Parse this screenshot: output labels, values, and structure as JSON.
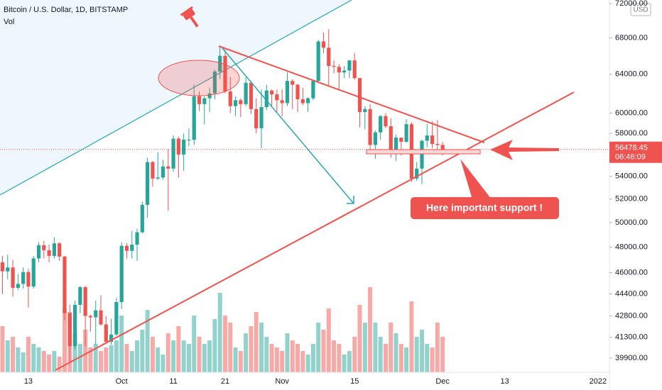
{
  "header": {
    "symbol": "Bitcoin / U.S. Dollar, 1D, BITSTAMP",
    "volume_label": "Vol",
    "currency": "USD"
  },
  "chart_data": {
    "type": "candlestick",
    "log_scale": true,
    "up_color": "#26a69a",
    "down_color": "#ef5350",
    "ylim": [
      38970,
      72430
    ],
    "yticks": [
      {
        "value": 39900,
        "label": "39900.00"
      },
      {
        "value": 41300,
        "label": "41300.00"
      },
      {
        "value": 42800,
        "label": "42800.00"
      },
      {
        "value": 44400,
        "label": "44400.00"
      },
      {
        "value": 46000,
        "label": "46000.00"
      },
      {
        "value": 48000,
        "label": "48000.00"
      },
      {
        "value": 50000,
        "label": "50000.00"
      },
      {
        "value": 52000,
        "label": "52000.00"
      },
      {
        "value": 54000,
        "label": "54000.00"
      },
      {
        "value": 58000,
        "label": "58000.00"
      },
      {
        "value": 60000,
        "label": "60000.00"
      },
      {
        "value": 64000,
        "label": "64000.00"
      },
      {
        "value": 68000,
        "label": "68000.00"
      },
      {
        "value": 72000,
        "label": "72000.00"
      }
    ],
    "categories": [
      null,
      null,
      null,
      null,
      null,
      "13",
      null,
      null,
      null,
      null,
      null,
      null,
      null,
      null,
      null,
      null,
      null,
      null,
      null,
      null,
      null,
      null,
      null,
      "Oct",
      null,
      null,
      null,
      null,
      null,
      null,
      null,
      null,
      null,
      "11",
      null,
      null,
      null,
      null,
      null,
      null,
      null,
      null,
      null,
      "21",
      null,
      null,
      null,
      null,
      null,
      null,
      null,
      null,
      null,
      null,
      "Nov",
      null,
      null,
      null,
      null,
      null,
      null,
      null,
      null,
      null,
      null,
      null,
      null,
      null,
      "15",
      null,
      null,
      null,
      null,
      null,
      null,
      null,
      null,
      null,
      null,
      null,
      null,
      null,
      null,
      null,
      null,
      "Dec",
      null,
      null,
      null,
      null,
      null,
      null,
      null,
      null,
      null,
      null,
      null,
      "13",
      null,
      null,
      null,
      null,
      null,
      null,
      null,
      null,
      null,
      null,
      null,
      null,
      null,
      null,
      null,
      null,
      null,
      "2022"
    ],
    "open": [
      46800,
      46100,
      46400,
      44850,
      45150,
      46050,
      44950,
      47100,
      48150,
      47750,
      47300,
      48300,
      47250,
      43000,
      40700,
      43600,
      44900,
      42800,
      42700,
      43200,
      42200,
      41000,
      41500,
      43800,
      48100,
      47700,
      48200,
      49200,
      51500,
      55300,
      53800,
      53900,
      54900,
      54700,
      57500,
      56000,
      57400,
      57400,
      61700,
      60900,
      61500,
      62000,
      64300,
      66000,
      62200,
      60700,
      61300,
      60900,
      63100,
      60400,
      58500,
      60600,
      62300,
      61900,
      61300,
      61000,
      63300,
      62900,
      61400,
      61000,
      61500,
      63300,
      67600,
      66900,
      64900,
      64800,
      64200,
      64400,
      65500,
      63600,
      60100,
      60400,
      56900,
      58100,
      59700,
      58700,
      56300,
      57600,
      57200,
      58900,
      53800,
      54700,
      57300,
      57800,
      57000,
      56900,
      null,
      null,
      null,
      null,
      null,
      null,
      null,
      null,
      null,
      null,
      null,
      null,
      null,
      null,
      null,
      null,
      null,
      null,
      null,
      null,
      null,
      null,
      null,
      null,
      null,
      null,
      null,
      null,
      null,
      null
    ],
    "high": [
      47300,
      47400,
      47000,
      45900,
      46400,
      46300,
      47300,
      48400,
      48500,
      48200,
      48800,
      48400,
      47300,
      43600,
      43900,
      45000,
      45000,
      42900,
      43900,
      44300,
      42800,
      42600,
      44100,
      48400,
      48300,
      49300,
      49500,
      51800,
      55700,
      55400,
      56200,
      55500,
      56500,
      57800,
      57700,
      58000,
      58500,
      62900,
      62200,
      61700,
      62600,
      64500,
      67000,
      66700,
      63700,
      61700,
      61500,
      63700,
      63300,
      61500,
      62400,
      62900,
      62400,
      62400,
      62400,
      64200,
      63500,
      63000,
      62600,
      61600,
      63300,
      67800,
      68600,
      69000,
      65500,
      65100,
      64900,
      65500,
      66300,
      63600,
      60700,
      60900,
      58300,
      59800,
      60000,
      59500,
      57900,
      57600,
      59400,
      59100,
      55300,
      57400,
      58900,
      59200,
      59300,
      57200,
      null,
      null,
      null,
      null,
      null,
      null,
      null,
      null,
      null,
      null,
      null,
      null,
      null,
      null,
      null,
      null,
      null,
      null,
      null,
      null,
      null,
      null,
      null,
      null,
      null,
      null,
      null,
      null,
      null,
      null
    ],
    "low": [
      44400,
      45500,
      44200,
      44700,
      44800,
      43400,
      44800,
      46800,
      47100,
      46800,
      47100,
      46900,
      42500,
      39600,
      40500,
      43000,
      40700,
      41700,
      40800,
      42100,
      40900,
      40800,
      41400,
      43300,
      47100,
      47100,
      46900,
      49100,
      50400,
      53100,
      53700,
      53700,
      51000,
      54400,
      53900,
      54500,
      56800,
      56900,
      60200,
      58900,
      60100,
      61400,
      63500,
      62000,
      60000,
      59700,
      59600,
      60700,
      59900,
      58000,
      56600,
      60300,
      60700,
      60000,
      59700,
      60700,
      60400,
      60100,
      60800,
      60100,
      61300,
      63100,
      66300,
      62800,
      64100,
      62300,
      63600,
      63600,
      63400,
      58600,
      58400,
      56500,
      55600,
      57400,
      58500,
      55700,
      55400,
      55900,
      57100,
      53500,
      53600,
      53300,
      56700,
      56600,
      56500,
      55900,
      null,
      null,
      null,
      null,
      null,
      null,
      null,
      null,
      null,
      null,
      null,
      null,
      null,
      null,
      null,
      null,
      null,
      null,
      null,
      null,
      null,
      null,
      null,
      null,
      null,
      null,
      null,
      null,
      null,
      null
    ],
    "close": [
      46100,
      46400,
      44850,
      45150,
      46050,
      44950,
      47100,
      48150,
      47750,
      47300,
      48300,
      47250,
      43000,
      40700,
      43600,
      44900,
      42800,
      42700,
      43200,
      42200,
      41000,
      41500,
      43800,
      48100,
      47700,
      48200,
      49200,
      51500,
      55300,
      53800,
      53900,
      54900,
      54700,
      57500,
      56000,
      57400,
      57400,
      61700,
      60900,
      61500,
      62000,
      64300,
      66000,
      62200,
      60700,
      61300,
      60900,
      63100,
      60400,
      58500,
      60600,
      62300,
      61900,
      61300,
      61000,
      63300,
      62900,
      61400,
      61000,
      61500,
      63300,
      67600,
      66900,
      64900,
      64800,
      64200,
      64400,
      65500,
      63600,
      60100,
      60400,
      56900,
      58100,
      59700,
      58700,
      56300,
      57600,
      57200,
      58900,
      53800,
      54700,
      57300,
      57800,
      57000,
      56900,
      56478.45,
      null,
      null,
      null,
      null,
      null,
      null,
      null,
      null,
      null,
      null,
      null,
      null,
      null,
      null,
      null,
      null,
      null,
      null,
      null,
      null,
      null,
      null,
      null,
      null,
      null,
      null,
      null,
      null,
      null,
      null
    ],
    "volume": [
      6500,
      4500,
      5000,
      3500,
      2800,
      5000,
      4000,
      3500,
      3000,
      2500,
      3000,
      2200,
      9000,
      8500,
      5500,
      4000,
      6000,
      3500,
      4000,
      3000,
      3500,
      3800,
      4500,
      8000,
      4000,
      3000,
      4500,
      6000,
      8800,
      5000,
      3500,
      2500,
      5500,
      4500,
      6500,
      4500,
      4000,
      8000,
      5000,
      4000,
      4500,
      7500,
      11200,
      8000,
      7000,
      3500,
      3000,
      5500,
      6500,
      8500,
      7000,
      5000,
      4000,
      3500,
      3000,
      5500,
      4500,
      4000,
      3000,
      2500,
      4000,
      7000,
      6000,
      9000,
      4500,
      4000,
      2500,
      3000,
      5000,
      9500,
      7000,
      12000,
      7000,
      5000,
      4000,
      7000,
      5500,
      4000,
      3500,
      10000,
      5000,
      6000,
      4000,
      3500,
      7000,
      5000,
      null,
      null,
      null,
      null,
      null,
      null,
      null,
      null,
      null,
      null,
      null,
      null,
      null,
      null,
      null,
      null,
      null,
      null,
      null,
      null,
      null,
      null,
      null,
      null,
      null,
      null,
      null,
      null,
      null,
      null
    ],
    "countdown": "06:46:09",
    "annotation": "Here important support !"
  }
}
